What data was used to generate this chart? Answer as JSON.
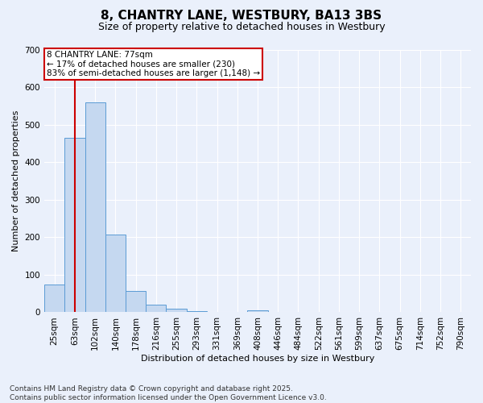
{
  "title": "8, CHANTRY LANE, WESTBURY, BA13 3BS",
  "subtitle": "Size of property relative to detached houses in Westbury",
  "xlabel": "Distribution of detached houses by size in Westbury",
  "ylabel": "Number of detached properties",
  "categories": [
    "25sqm",
    "63sqm",
    "102sqm",
    "140sqm",
    "178sqm",
    "216sqm",
    "255sqm",
    "293sqm",
    "331sqm",
    "369sqm",
    "408sqm",
    "446sqm",
    "484sqm",
    "522sqm",
    "561sqm",
    "599sqm",
    "637sqm",
    "675sqm",
    "714sqm",
    "752sqm",
    "790sqm"
  ],
  "values": [
    75,
    465,
    560,
    207,
    57,
    20,
    10,
    4,
    2,
    1,
    5,
    0,
    0,
    0,
    0,
    0,
    0,
    0,
    0,
    0,
    0
  ],
  "bar_color": "#c5d8f0",
  "bar_edge_color": "#5b9bd5",
  "ylim": [
    0,
    700
  ],
  "yticks": [
    0,
    100,
    200,
    300,
    400,
    500,
    600,
    700
  ],
  "red_line_x": 1.0,
  "annotation_text": "8 CHANTRY LANE: 77sqm\n← 17% of detached houses are smaller (230)\n83% of semi-detached houses are larger (1,148) →",
  "annotation_box_color": "#ffffff",
  "annotation_box_edge": "#cc0000",
  "red_line_color": "#cc0000",
  "background_color": "#eaf0fb",
  "grid_color": "#ffffff",
  "footer_text": "Contains HM Land Registry data © Crown copyright and database right 2025.\nContains public sector information licensed under the Open Government Licence v3.0.",
  "title_fontsize": 11,
  "subtitle_fontsize": 9,
  "axis_label_fontsize": 8,
  "tick_fontsize": 7.5,
  "footer_fontsize": 6.5,
  "annotation_fontsize": 7.5
}
